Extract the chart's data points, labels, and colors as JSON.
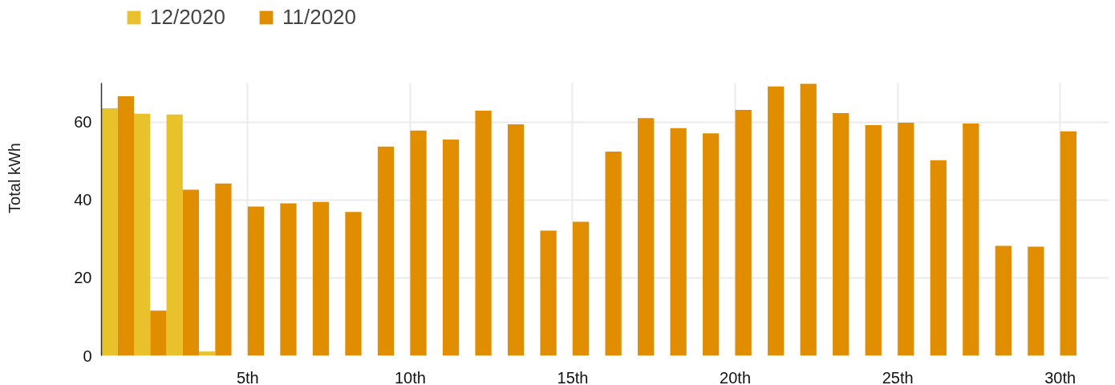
{
  "chart_data": {
    "type": "bar",
    "ylabel": "Total kWh",
    "legend": "top left",
    "grid": true,
    "x": [
      1,
      2,
      3,
      4,
      5,
      6,
      7,
      8,
      9,
      10,
      11,
      12,
      13,
      14,
      15,
      16,
      17,
      18,
      19,
      20,
      21,
      22,
      23,
      24,
      25,
      26,
      27,
      28,
      29,
      30
    ],
    "xlim": [
      0.5,
      31.5
    ],
    "xticks": [
      {
        "value": 5,
        "label": "5th"
      },
      {
        "value": 10,
        "label": "10th"
      },
      {
        "value": 15,
        "label": "15th"
      },
      {
        "value": 20,
        "label": "20th"
      },
      {
        "value": 25,
        "label": "25th"
      },
      {
        "value": 30,
        "label": "30th"
      }
    ],
    "ylim": [
      0,
      70
    ],
    "yticks": [
      0,
      20,
      40,
      60
    ],
    "series": [
      {
        "name": "12/2020",
        "color": "#e8c12c",
        "values": [
          63.5,
          62.1,
          61.9,
          1.1,
          null,
          null,
          null,
          null,
          null,
          null,
          null,
          null,
          null,
          null,
          null,
          null,
          null,
          null,
          null,
          null,
          null,
          null,
          null,
          null,
          null,
          null,
          null,
          null,
          null,
          null
        ]
      },
      {
        "name": "11/2020",
        "color": "#e08e00",
        "values": [
          66.6,
          11.6,
          42.6,
          44.2,
          38.3,
          39.1,
          39.5,
          36.9,
          53.7,
          57.8,
          55.5,
          62.9,
          59.4,
          32.1,
          34.4,
          52.4,
          61.0,
          58.4,
          57.1,
          63.1,
          69.1,
          69.8,
          62.3,
          59.2,
          59.8,
          50.2,
          59.6,
          28.2,
          28.0,
          57.6
        ]
      }
    ]
  }
}
